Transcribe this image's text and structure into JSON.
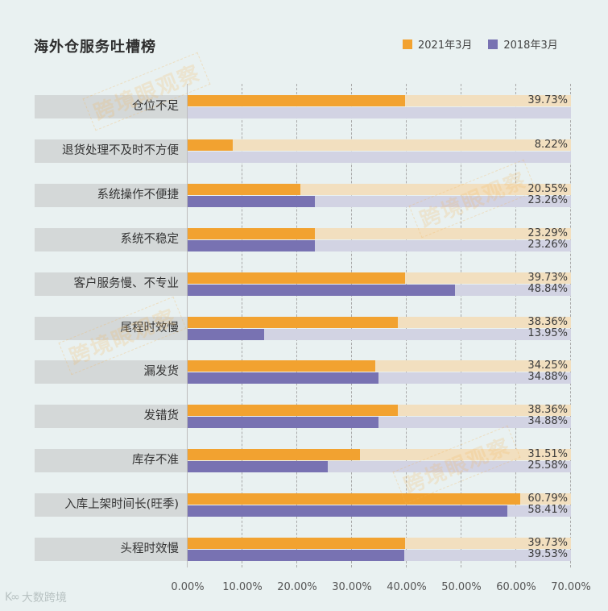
{
  "title": "海外仓服务吐槽榜",
  "legend": [
    {
      "label": "2021年3月",
      "color": "#f2a230"
    },
    {
      "label": "2018年3月",
      "color": "#7872b2"
    }
  ],
  "watermark": "跨境眼观察",
  "logo": {
    "icon": "kooo-logo-icon",
    "text": "大数跨境"
  },
  "chart_data": {
    "type": "bar",
    "orientation": "horizontal",
    "title": "海外仓服务吐槽榜",
    "xlabel": "",
    "ylabel": "",
    "xlim": [
      0,
      70
    ],
    "x_ticks": [
      "0.00%",
      "10.00%",
      "20.00%",
      "30.00%",
      "40.00%",
      "50.00%",
      "60.00%",
      "70.00%"
    ],
    "grid": "vertical dashed",
    "legend_position": "top-right",
    "categories": [
      "仓位不足",
      "退货处理不及时不方便",
      "系统操作不便捷",
      "系统不稳定",
      "客户服务慢、不专业",
      "尾程时效慢",
      "漏发货",
      "发错货",
      "库存不准",
      "入库上架时间长(旺季)",
      "头程时效慢"
    ],
    "series": [
      {
        "name": "2021年3月",
        "color": "#f2a230",
        "values": [
          39.73,
          8.22,
          20.55,
          23.29,
          39.73,
          38.36,
          34.25,
          38.36,
          31.51,
          60.79,
          39.73
        ],
        "labels": [
          "39.73%",
          "8.22%",
          "20.55%",
          "23.29%",
          "39.73%",
          "38.36%",
          "34.25%",
          "38.36%",
          "31.51%",
          "60.79%",
          "39.73%"
        ]
      },
      {
        "name": "2018年3月",
        "color": "#7872b2",
        "values": [
          null,
          null,
          23.26,
          23.26,
          48.84,
          13.95,
          34.88,
          34.88,
          25.58,
          58.41,
          39.53
        ],
        "labels": [
          "",
          "",
          "23.26%",
          "23.26%",
          "48.84%",
          "13.95%",
          "34.88%",
          "34.88%",
          "25.58%",
          "58.41%",
          "39.53%"
        ]
      }
    ]
  }
}
